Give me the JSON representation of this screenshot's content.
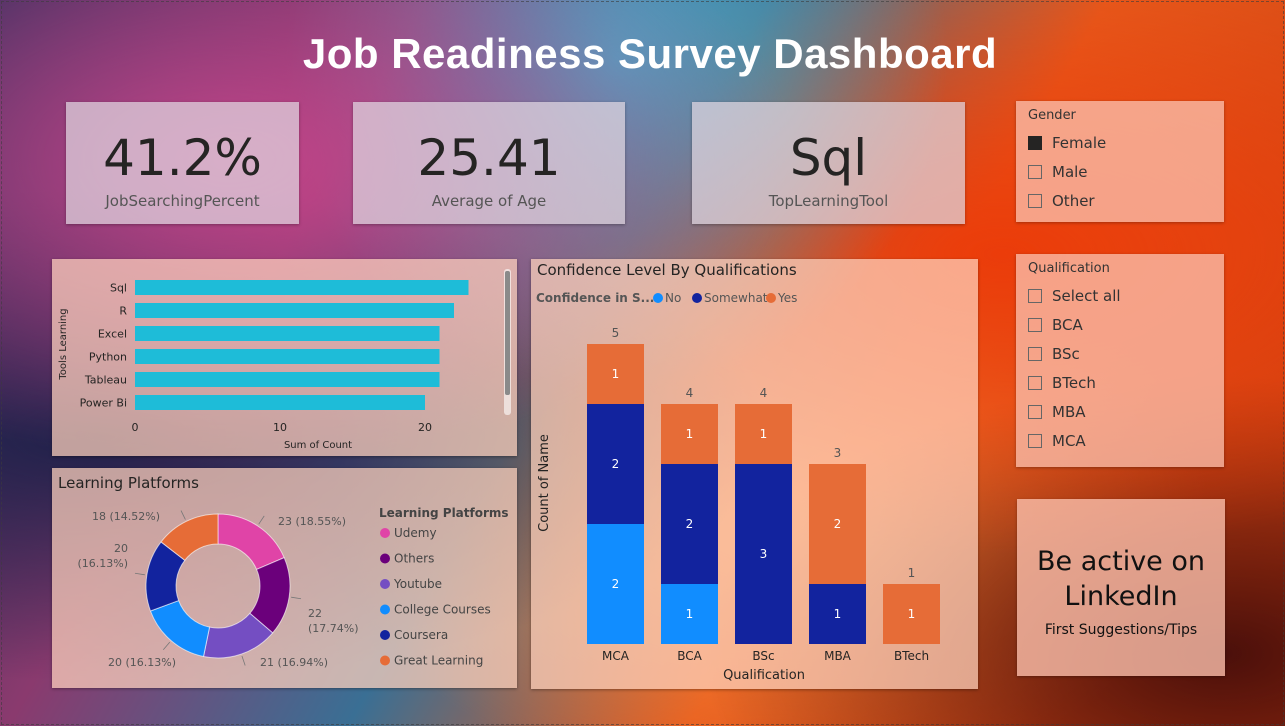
{
  "dashboard": {
    "title": "Job Readiness Survey Dashboard"
  },
  "kpis": [
    {
      "value": "41.2%",
      "label": "JobSearchingPercent"
    },
    {
      "value": "25.41",
      "label": "Average of Age"
    },
    {
      "value": "Sql",
      "label": "TopLearningTool"
    }
  ],
  "gender_slicer": {
    "title": "Gender",
    "options": [
      {
        "label": "Female",
        "checked": true
      },
      {
        "label": "Male",
        "checked": false
      },
      {
        "label": "Other",
        "checked": false
      }
    ]
  },
  "qualification_slicer": {
    "title": "Qualification",
    "options": [
      {
        "label": "Select all",
        "checked": false
      },
      {
        "label": "BCA",
        "checked": false
      },
      {
        "label": "BSc",
        "checked": false
      },
      {
        "label": "BTech",
        "checked": false
      },
      {
        "label": "MBA",
        "checked": false
      },
      {
        "label": "MCA",
        "checked": false
      }
    ]
  },
  "linkedin_card": {
    "line1": "Be active on",
    "line2": "LinkedIn",
    "subtitle": "First Suggestions/Tips"
  },
  "chart_data": [
    {
      "type": "bar",
      "orientation": "horizontal",
      "title": "",
      "categories": [
        "Sql",
        "R",
        "Excel",
        "Python",
        "Tableau",
        "Power Bi"
      ],
      "values": [
        23,
        22,
        21,
        21,
        21,
        20
      ],
      "xlabel": "Sum of Count",
      "ylabel": "Tools Learning",
      "xticks": [
        "0",
        "10",
        "20"
      ],
      "xlim": [
        0,
        25
      ],
      "color": "#1EBCD8"
    },
    {
      "type": "pie",
      "donut": true,
      "title": "Learning Platforms",
      "legend_title": "Learning Platforms",
      "legend_position": "right",
      "slices": [
        {
          "label": "Udemy",
          "value": 23,
          "text": "23 (18.55%)",
          "color": "#E044A7"
        },
        {
          "label": "Others",
          "value": 22,
          "text": "22 (17.74%)",
          "color": "#6B007B"
        },
        {
          "label": "Youtube",
          "value": 21,
          "text": "21 (16.94%)",
          "color": "#744EC2"
        },
        {
          "label": "College Courses",
          "value": 20,
          "text": "20 (16.13%)",
          "color": "#118DFF"
        },
        {
          "label": "Coursera",
          "value": 20,
          "text": "20 (16.13%)",
          "color": "#12239E"
        },
        {
          "label": "Great Learning",
          "value": 18,
          "text": "18 (14.52%)",
          "color": "#E66C37"
        }
      ]
    },
    {
      "type": "bar",
      "stacked": true,
      "title": "Confidence Level By Qualifications",
      "legend_title": "Confidence in S...",
      "legend_position": "top-left",
      "xlabel": "Qualification",
      "ylabel": "Count of Name",
      "categories": [
        "MCA",
        "BCA",
        "BSc",
        "MBA",
        "BTech"
      ],
      "series": [
        {
          "name": "No",
          "values": [
            2,
            1,
            0,
            0,
            0
          ],
          "color": "#118DFF"
        },
        {
          "name": "Somewhat",
          "values": [
            2,
            2,
            3,
            1,
            0
          ],
          "color": "#12239E"
        },
        {
          "name": "Yes",
          "values": [
            1,
            1,
            1,
            2,
            1
          ],
          "color": "#E66C37"
        }
      ],
      "totals": [
        5,
        4,
        4,
        3,
        1
      ],
      "ylim": [
        0,
        5
      ]
    }
  ]
}
